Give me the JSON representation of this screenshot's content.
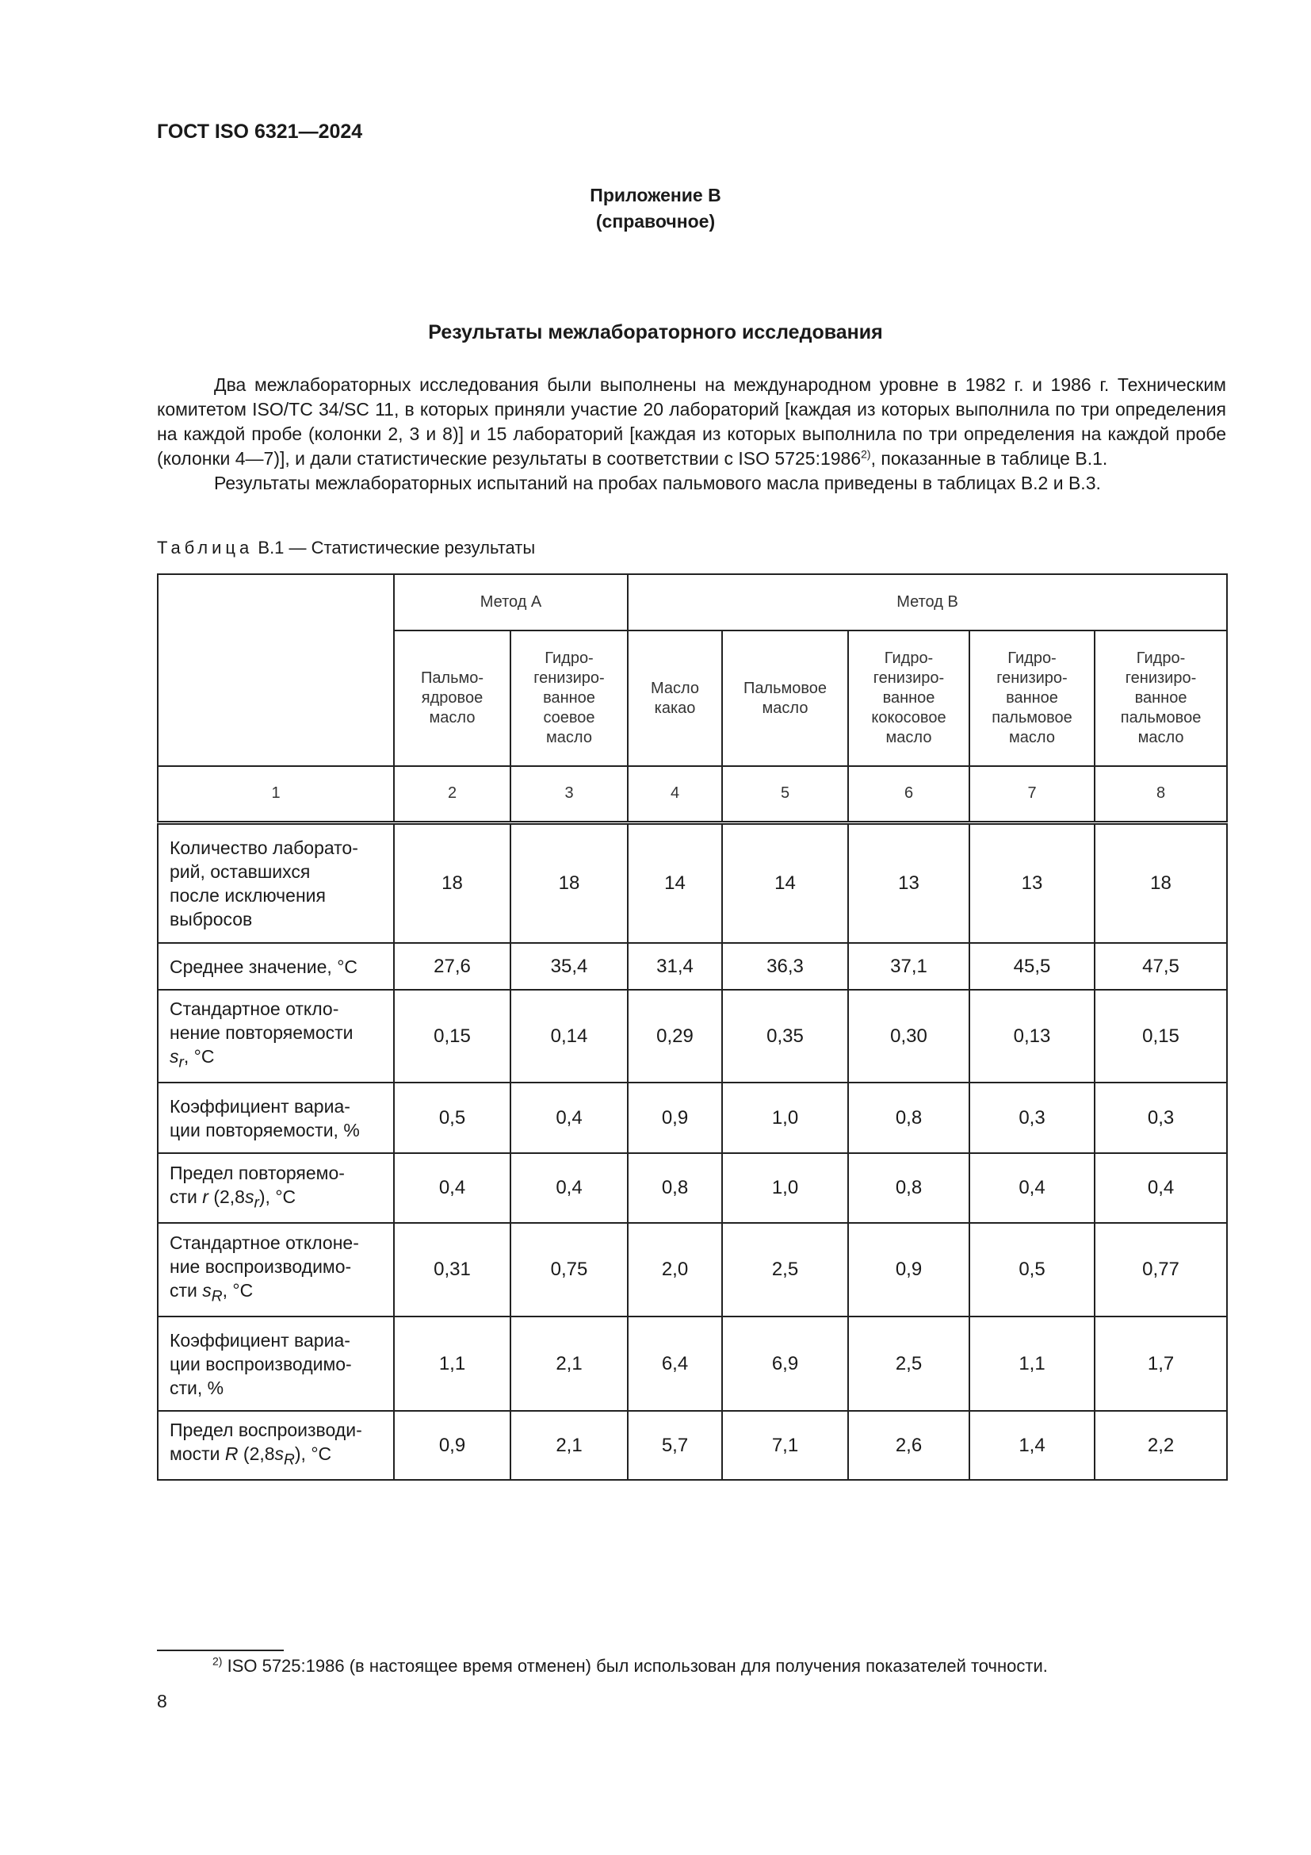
{
  "header": {
    "doc_code": "ГОСТ ISO 6321—2024"
  },
  "annex": {
    "label": "Приложение В",
    "type": "(справочное)"
  },
  "title": "Результаты межлабораторного исследования",
  "body": {
    "p1": "Два межлабораторных исследования были выполнены на международном уровне в 1982 г. и 1986 г. Техническим комитетом ISO/TC 34/SC 11, в которых приняли участие 20 лабораторий [каждая из которых выполнила по три определения на каждой пробе (колонки 2, 3 и 8)] и 15 лабораторий [каждая из которых выполнила по три определения на каждой пробе (колонки 4—7)], и дали статистические результаты в соответствии с ISO 5725:1986",
    "p1_sup": "2)",
    "p1_end": ", показанные в таблице В.1.",
    "p2": "Результаты межлабораторных испытаний на пробах пальмового масла приведены в таблицах В.2 и В.3."
  },
  "table": {
    "caption_prefix": "Таблица",
    "caption": "В.1 — Статистические результаты",
    "method_a": "Метод А",
    "method_b": "Метод В",
    "columns": [
      "Пальмо-\nядровое\nмасло",
      "Гидро-\nгенизиро-\nванное\nсоевое\nмасло",
      "Масло\nкакао",
      "Пальмовое\nмасло",
      "Гидро-\nгенизиро-\nванное\nкокосовое\nмасло",
      "Гидро-\nгенизиро-\nванное\nпальмовое\nмасло",
      "Гидро-\nгенизиро-\nванное\nпальмовое\nмасло"
    ],
    "numbers": [
      "1",
      "2",
      "3",
      "4",
      "5",
      "6",
      "7",
      "8"
    ],
    "rows": [
      {
        "label": "Количество лаборато-\nрий, оставшихся\nпосле исключения\nвыбросов",
        "values": [
          "18",
          "18",
          "14",
          "14",
          "13",
          "13",
          "18"
        ]
      },
      {
        "label": "Среднее значение, °С",
        "values": [
          "27,6",
          "35,4",
          "31,4",
          "36,3",
          "37,1",
          "45,5",
          "47,5"
        ]
      },
      {
        "label": "Стандартное откло-\nнение повторяемости\ns_r, °С",
        "values": [
          "0,15",
          "0,14",
          "0,29",
          "0,35",
          "0,30",
          "0,13",
          "0,15"
        ]
      },
      {
        "label": "Коэффициент вариа-\nции повторяемости, %",
        "values": [
          "0,5",
          "0,4",
          "0,9",
          "1,0",
          "0,8",
          "0,3",
          "0,3"
        ]
      },
      {
        "label": "Предел повторяемо-\nсти r (2,8s_r), °С",
        "values": [
          "0,4",
          "0,4",
          "0,8",
          "1,0",
          "0,8",
          "0,4",
          "0,4"
        ]
      },
      {
        "label": "Стандартное отклоне-\nние воспроизводимо-\nсти s_R, °С",
        "values": [
          "0,31",
          "0,75",
          "2,0",
          "2,5",
          "0,9",
          "0,5",
          "0,77"
        ]
      },
      {
        "label": "Коэффициент вариа-\nции воспроизводимо-\nсти, %",
        "values": [
          "1,1",
          "2,1",
          "6,4",
          "6,9",
          "2,5",
          "1,1",
          "1,7"
        ]
      },
      {
        "label": "Предел воспроизводи-\nмости R (2,8s_R), °С",
        "values": [
          "0,9",
          "2,1",
          "5,7",
          "7,1",
          "2,6",
          "1,4",
          "2,2"
        ]
      }
    ]
  },
  "footnote": {
    "mark": "2)",
    "text": "ISO 5725:1986 (в настоящее время отменен) был использован для получения показателей точности."
  },
  "page_number": "8"
}
